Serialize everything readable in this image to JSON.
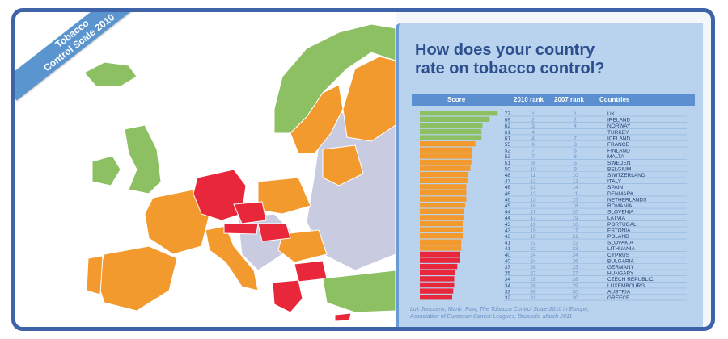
{
  "ribbon": {
    "line1": "Tobacco",
    "line2": "Control Scale 2010"
  },
  "panel": {
    "title_line1": "How does your country",
    "title_line2": "rate on tobacco control?",
    "headers": {
      "score": "Score",
      "rank2010": "2010 rank",
      "rank2007": "2007 rank",
      "countries": "Countries"
    },
    "source_line1": "Luk Joossens, Martin Raw, The Tobacco Control Scale 2010  in Europe,",
    "source_line2": "Association of European Cancer Leagues, Brussels, March 2011"
  },
  "colors": {
    "green": "#8cc063",
    "orange": "#f39a2f",
    "red": "#e8273a",
    "gray": "#c9cce0",
    "frame": "#3f63a8",
    "panel": "#b9d3ee"
  },
  "map_legend_note": "",
  "chart_data": {
    "type": "bar",
    "orientation": "horizontal",
    "title": "How does your country rate on tobacco control?",
    "categories": [
      "UK",
      "IRELAND",
      "NORWAY",
      "TURKEY",
      "ICELAND",
      "FRANCE",
      "FINLAND",
      "MALTA",
      "SWEDEN",
      "BELGIUM",
      "SWITZERLAND",
      "ITALY",
      "SPAIN",
      "DENMARK",
      "NETHERLANDS",
      "ROMANIA",
      "SLOVENIA",
      "LATVIA",
      "PORTUGAL",
      "ESTONIA",
      "POLAND",
      "SLOVAKIA",
      "LITHUANIA",
      "CYPRUS",
      "BULGARIA",
      "GERMANY",
      "HUNGARY",
      "CZECH REPUBLIC",
      "LUXEMBOURG",
      "AUSTRIA",
      "GREECE"
    ],
    "values": [
      77,
      69,
      62,
      61,
      61,
      55,
      52,
      52,
      51,
      50,
      48,
      47,
      46,
      46,
      46,
      45,
      44,
      44,
      43,
      43,
      43,
      41,
      41,
      40,
      40,
      37,
      35,
      34,
      34,
      33,
      32
    ],
    "color_groups": [
      "green",
      "green",
      "green",
      "green",
      "green",
      "orange",
      "orange",
      "orange",
      "orange",
      "orange",
      "orange",
      "orange",
      "orange",
      "orange",
      "orange",
      "orange",
      "orange",
      "orange",
      "orange",
      "orange",
      "orange",
      "orange",
      "orange",
      "red",
      "red",
      "red",
      "red",
      "red",
      "red",
      "red",
      "red"
    ],
    "rank_2010": [
      "1",
      "2",
      "3",
      "4",
      "4",
      "6",
      "7",
      "7",
      "9",
      "10",
      "11",
      "12",
      "13",
      "13",
      "13",
      "16",
      "17",
      "17",
      "19",
      "19",
      "19",
      "22",
      "22",
      "24",
      "24",
      "26",
      "27",
      "28",
      "28",
      "30",
      "31"
    ],
    "rank_2007": [
      "1",
      "2",
      "4",
      "",
      "7",
      "3",
      "6",
      "8",
      "5",
      "9",
      "10",
      "12",
      "14",
      "11",
      "15",
      "18",
      "20",
      "19",
      "16",
      "17",
      "21",
      "22",
      "23",
      "24",
      "26",
      "25",
      "27",
      "28",
      "29",
      "30",
      "30"
    ],
    "xlim": [
      0,
      80
    ],
    "grid": false
  }
}
